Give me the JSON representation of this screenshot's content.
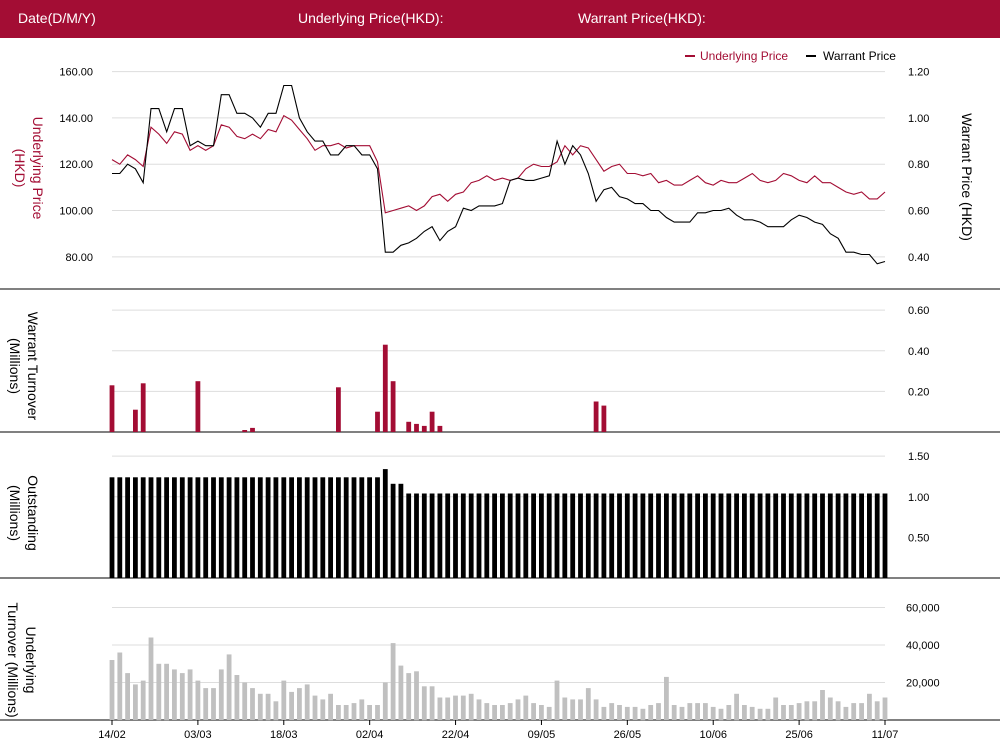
{
  "header": {
    "date_label": "Date(D/M/Y)",
    "underlying_label": "Underlying Price(HKD):",
    "warrant_label": "Warrant Price(HKD):"
  },
  "colors": {
    "brand": "#a30d34",
    "underlying": "#a30d34",
    "warrant": "#000000",
    "warrant_turnover": "#a30d34",
    "outstanding": "#000000",
    "underlying_turnover": "#c0c0c0",
    "grid": "#dddddd"
  },
  "chart_data": [
    {
      "type": "line",
      "name": "price-panel",
      "legend": [
        "Underlying Price",
        "Warrant Price"
      ],
      "legend_position": "top-right",
      "y_left_label": "Underlying Price (HKD)",
      "y_right_label": "Warrant  Price (HKD)",
      "y_left_ticks": [
        "160.00",
        "140.00",
        "120.00",
        "100.00",
        "80.00"
      ],
      "y_left_tick_values": [
        160,
        140,
        120,
        100,
        80
      ],
      "y_right_ticks": [
        "1.20",
        "1.00",
        "0.80",
        "0.60",
        "0.40"
      ],
      "y_right_tick_values": [
        1.2,
        1.0,
        0.8,
        0.6,
        0.4
      ],
      "ylim_left": [
        70,
        165
      ],
      "ylim_right": [
        0.3,
        1.25
      ],
      "series": [
        {
          "name": "Underlying Price",
          "axis": "left",
          "values": [
            122,
            120,
            124,
            122,
            119,
            136,
            133,
            129,
            134,
            133,
            126,
            128,
            126,
            128,
            137,
            136,
            132,
            131,
            133,
            131,
            135,
            134,
            141,
            139,
            135,
            131,
            126,
            128,
            128,
            129,
            127,
            128,
            128,
            128,
            121,
            99,
            100,
            101,
            102,
            100,
            102,
            106,
            107,
            104,
            107,
            108,
            112,
            113,
            115,
            113,
            114,
            113,
            114,
            118,
            120,
            119,
            119,
            121,
            128,
            124,
            128,
            127,
            122,
            117,
            119,
            120,
            116,
            116,
            115,
            116,
            112,
            113,
            111,
            111,
            113,
            115,
            112,
            111,
            113,
            112,
            112,
            114,
            116,
            113,
            112,
            113,
            116,
            115,
            113,
            112,
            115,
            112,
            112,
            110,
            108,
            107,
            108,
            105,
            105,
            108
          ]
        },
        {
          "name": "Warrant Price",
          "axis": "right",
          "values": [
            0.76,
            0.76,
            0.8,
            0.78,
            0.72,
            1.04,
            1.04,
            0.94,
            1.04,
            1.04,
            0.88,
            0.9,
            0.88,
            0.88,
            1.1,
            1.1,
            1.02,
            1.02,
            1.0,
            0.96,
            1.02,
            1.02,
            1.14,
            1.14,
            1.0,
            0.94,
            0.9,
            0.9,
            0.84,
            0.84,
            0.88,
            0.88,
            0.84,
            0.84,
            0.78,
            0.42,
            0.42,
            0.45,
            0.46,
            0.48,
            0.51,
            0.53,
            0.47,
            0.51,
            0.53,
            0.61,
            0.6,
            0.62,
            0.62,
            0.62,
            0.63,
            0.73,
            0.74,
            0.73,
            0.73,
            0.74,
            0.75,
            0.9,
            0.8,
            0.88,
            0.84,
            0.76,
            0.64,
            0.69,
            0.7,
            0.66,
            0.65,
            0.63,
            0.63,
            0.6,
            0.6,
            0.57,
            0.55,
            0.55,
            0.55,
            0.59,
            0.59,
            0.6,
            0.6,
            0.61,
            0.58,
            0.56,
            0.56,
            0.55,
            0.53,
            0.53,
            0.53,
            0.56,
            0.58,
            0.57,
            0.55,
            0.54,
            0.5,
            0.48,
            0.42,
            0.42,
            0.41,
            0.41,
            0.37,
            0.38
          ]
        }
      ]
    },
    {
      "type": "bar",
      "name": "warrant-turnover-panel",
      "y_label": "Warrant  Turnover (Millions)",
      "y_ticks": [
        "0.60",
        "0.40",
        "0.20"
      ],
      "y_tick_values": [
        0.6,
        0.4,
        0.2
      ],
      "ylim": [
        0,
        0.65
      ],
      "values": [
        0.23,
        0,
        0,
        0.11,
        0.24,
        0,
        0,
        0,
        0,
        0,
        0,
        0.25,
        0,
        0,
        0,
        0,
        0,
        0.01,
        0.02,
        0,
        0,
        0,
        0,
        0,
        0,
        0,
        0,
        0,
        0,
        0.22,
        0,
        0,
        0,
        0,
        0.1,
        0.43,
        0.25,
        0,
        0.05,
        0.04,
        0.03,
        0.1,
        0.03,
        0,
        0,
        0,
        0,
        0,
        0,
        0,
        0,
        0,
        0,
        0,
        0,
        0,
        0,
        0,
        0,
        0,
        0,
        0,
        0.15,
        0.13,
        0,
        0,
        0,
        0,
        0,
        0,
        0,
        0,
        0,
        0,
        0,
        0,
        0,
        0,
        0,
        0,
        0,
        0,
        0,
        0,
        0,
        0,
        0,
        0,
        0,
        0,
        0,
        0,
        0,
        0,
        0,
        0,
        0,
        0,
        0,
        0
      ]
    },
    {
      "type": "bar",
      "name": "outstanding-panel",
      "y_label": "Outstanding (Millions)",
      "y_ticks": [
        "1.50",
        "1.00",
        "0.50"
      ],
      "y_tick_values": [
        1.5,
        1.0,
        0.5
      ],
      "ylim": [
        0,
        1.6
      ],
      "values": [
        1.24,
        1.24,
        1.24,
        1.24,
        1.24,
        1.24,
        1.24,
        1.24,
        1.24,
        1.24,
        1.24,
        1.24,
        1.24,
        1.24,
        1.24,
        1.24,
        1.24,
        1.24,
        1.24,
        1.24,
        1.24,
        1.24,
        1.24,
        1.24,
        1.24,
        1.24,
        1.24,
        1.24,
        1.24,
        1.24,
        1.24,
        1.24,
        1.24,
        1.24,
        1.24,
        1.34,
        1.16,
        1.16,
        1.04,
        1.04,
        1.04,
        1.04,
        1.04,
        1.04,
        1.04,
        1.04,
        1.04,
        1.04,
        1.04,
        1.04,
        1.04,
        1.04,
        1.04,
        1.04,
        1.04,
        1.04,
        1.04,
        1.04,
        1.04,
        1.04,
        1.04,
        1.04,
        1.04,
        1.04,
        1.04,
        1.04,
        1.04,
        1.04,
        1.04,
        1.04,
        1.04,
        1.04,
        1.04,
        1.04,
        1.04,
        1.04,
        1.04,
        1.04,
        1.04,
        1.04,
        1.04,
        1.04,
        1.04,
        1.04,
        1.04,
        1.04,
        1.04,
        1.04,
        1.04,
        1.04,
        1.04,
        1.04,
        1.04,
        1.04,
        1.04,
        1.04,
        1.04,
        1.04,
        1.04,
        1.04
      ]
    },
    {
      "type": "bar",
      "name": "underlying-turnover-panel",
      "y_label": "Underlying Turnover (Millions)",
      "y_ticks": [
        "60,000",
        "40,000",
        "20,000"
      ],
      "y_tick_values": [
        60000,
        40000,
        20000
      ],
      "ylim": [
        0,
        64000
      ],
      "x_tick_labels": [
        "14/02",
        "03/03",
        "18/03",
        "02/04",
        "22/04",
        "09/05",
        "26/05",
        "10/06",
        "25/06",
        "11/07"
      ],
      "x_tick_indices": [
        0,
        11,
        22,
        33,
        44,
        55,
        66,
        77,
        88,
        99
      ],
      "values": [
        32000,
        36000,
        25000,
        19000,
        21000,
        44000,
        30000,
        30000,
        27000,
        25000,
        27000,
        21000,
        17000,
        17000,
        27000,
        35000,
        24000,
        20000,
        17000,
        14000,
        14000,
        10000,
        21000,
        15000,
        17000,
        19000,
        13000,
        11000,
        14000,
        8000,
        8000,
        9000,
        11000,
        8000,
        8000,
        20000,
        41000,
        29000,
        25000,
        26000,
        18000,
        18000,
        12000,
        12000,
        13000,
        13000,
        14000,
        11000,
        9000,
        8000,
        8000,
        9000,
        11000,
        13000,
        9000,
        8000,
        7000,
        21000,
        12000,
        11000,
        11000,
        17000,
        11000,
        7000,
        9000,
        8000,
        7000,
        7000,
        6000,
        8000,
        9000,
        23000,
        8000,
        7000,
        9000,
        9000,
        9000,
        7000,
        6000,
        8000,
        14000,
        8000,
        7000,
        6000,
        6000,
        12000,
        8000,
        8000,
        9000,
        10000,
        10000,
        16000,
        12000,
        10000,
        7000,
        9000,
        9000,
        14000,
        10000,
        12000
      ]
    }
  ]
}
